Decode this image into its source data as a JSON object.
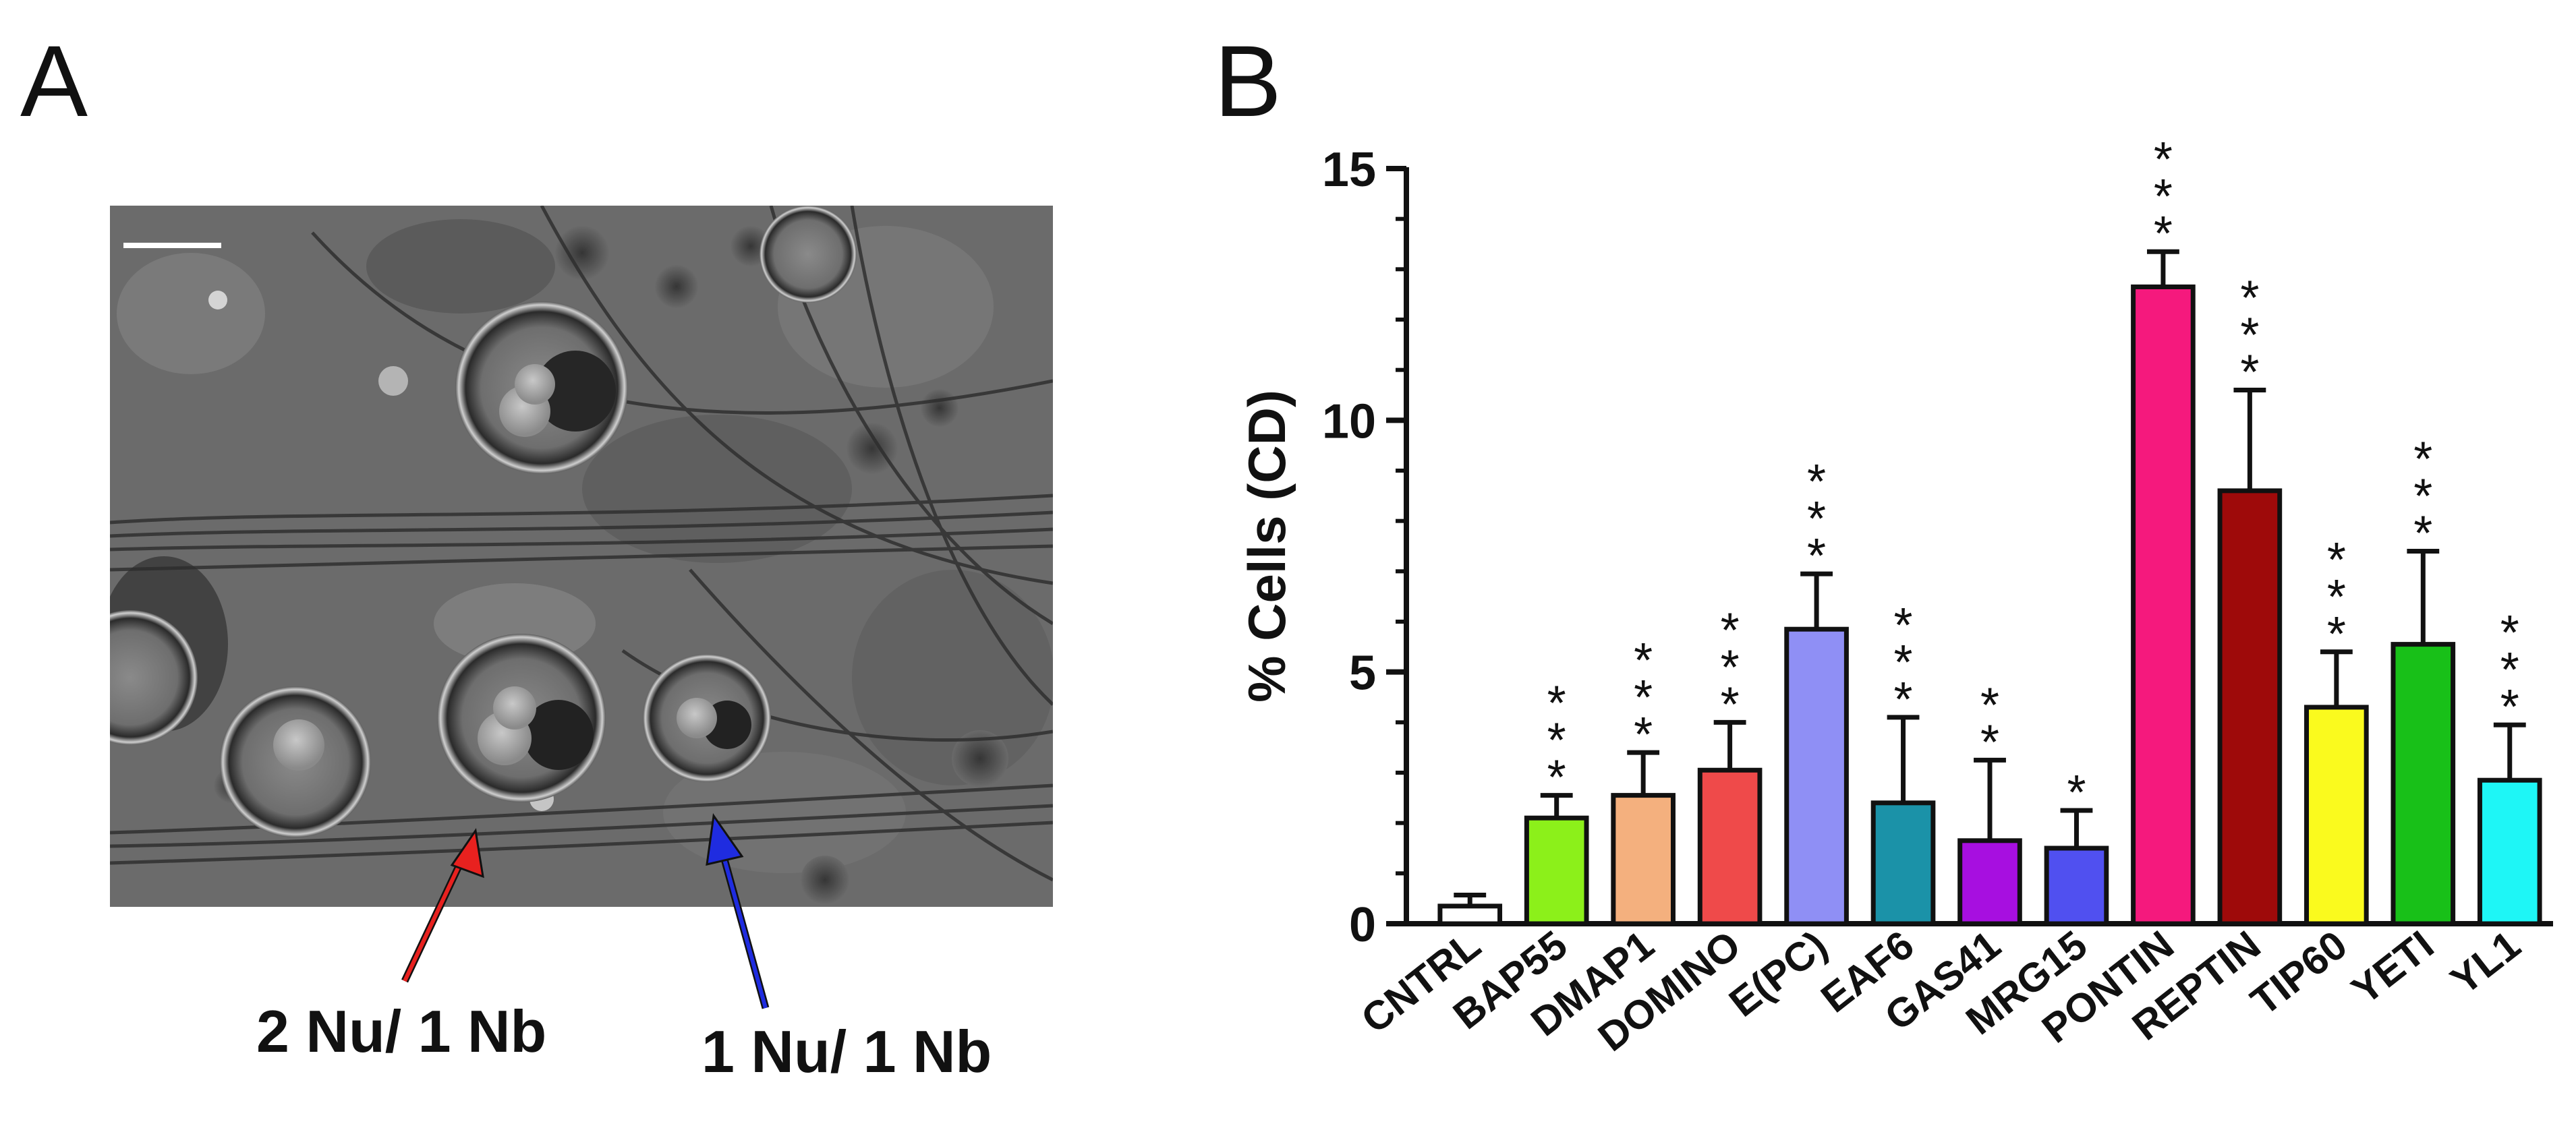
{
  "panel_a": {
    "label": "A",
    "arrows": [
      {
        "label": "2 Nu/ 1 Nb",
        "color": "#e8211f"
      },
      {
        "label": "1 Nu/ 1 Nb",
        "color": "#1f2ce0"
      }
    ]
  },
  "panel_b": {
    "label": "B"
  },
  "chart_data": {
    "type": "bar",
    "title": "",
    "xlabel": "",
    "ylabel": "% Cells (CD)",
    "ylim": [
      0,
      15
    ],
    "yticks": [
      0,
      5,
      10,
      15
    ],
    "categories": [
      "CNTRL",
      "BAP55",
      "DMAP1",
      "DOMINO",
      "E(PC)",
      "EAF6",
      "GAS41",
      "MRG15",
      "PONTIN",
      "REPTIN",
      "TIP60",
      "YETI",
      "YL1"
    ],
    "values": [
      0.35,
      2.1,
      2.55,
      3.05,
      5.85,
      2.4,
      1.65,
      1.5,
      12.65,
      8.6,
      4.3,
      5.55,
      2.85
    ],
    "errors": [
      0.22,
      0.45,
      0.85,
      0.95,
      1.1,
      1.7,
      1.6,
      0.75,
      0.7,
      2.0,
      1.1,
      1.85,
      1.1
    ],
    "colors": [
      "#ffffff",
      "#8cf01a",
      "#f4b07e",
      "#ef4a4a",
      "#8f8ff5",
      "#1b92a8",
      "#a70fe0",
      "#5050f0",
      "#f5197d",
      "#9e0a0a",
      "#fafa1e",
      "#18c018",
      "#1ef6f6"
    ],
    "significance": [
      "",
      "***",
      "***",
      "***",
      "***",
      "***",
      "**",
      "*",
      "***",
      "***",
      "***",
      "***",
      "***"
    ]
  }
}
